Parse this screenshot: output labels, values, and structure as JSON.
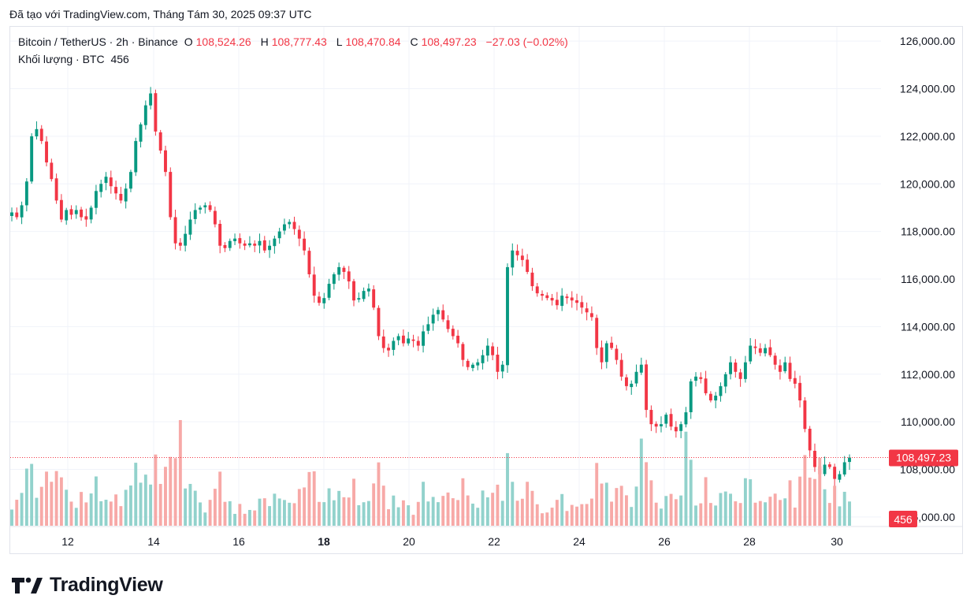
{
  "caption": "Đã tạo với TradingView.com, Tháng Tám 30, 2025 09:37 UTC",
  "legend": {
    "symbol": "Bitcoin / TetherUS · 2h · Binance",
    "open_label": "O",
    "open": "108,524.26",
    "high_label": "H",
    "high": "108,777.43",
    "low_label": "L",
    "low": "108,470.84",
    "close_label": "C",
    "close": "108,497.23",
    "change": "−27.03 (−0.02%)",
    "volume_label": "Khối lượng · BTC",
    "volume": "456"
  },
  "price_tag": "108,497.23",
  "volume_tag": "456",
  "brand": "TradingView",
  "colors": {
    "up": "#089981",
    "down": "#f23645",
    "vol_up": "#92d2cc",
    "vol_down": "#f7a9a7",
    "grid": "#f0f3fa",
    "text": "#131722"
  },
  "chart_data": {
    "type": "candlestick",
    "y_ticks": [
      "126,000.00",
      "124,000.00",
      "122,000.00",
      "120,000.00",
      "118,000.00",
      "116,000.00",
      "114,000.00",
      "112,000.00",
      "110,000.00",
      "108,000.00",
      "106,000.00"
    ],
    "y_tick_values": [
      126000,
      124000,
      122000,
      120000,
      118000,
      116000,
      114000,
      112000,
      110000,
      108000,
      106000
    ],
    "x_ticks": [
      "12",
      "14",
      "16",
      "18",
      "20",
      "22",
      "24",
      "26",
      "28",
      "30"
    ],
    "x_tick_bold": [
      "18"
    ],
    "y_range": [
      105600,
      126600
    ],
    "last_price": 108497.23,
    "approx_closes": [
      118800,
      118600,
      119100,
      120100,
      122000,
      122300,
      121800,
      120900,
      120200,
      119300,
      118500,
      118900,
      118700,
      118900,
      118600,
      118500,
      119000,
      119700,
      120000,
      120300,
      119900,
      119600,
      119300,
      119800,
      120500,
      121800,
      122500,
      123300,
      123800,
      122200,
      121400,
      120500,
      118600,
      117500,
      117400,
      117900,
      118500,
      118900,
      119000,
      119100,
      118900,
      118300,
      117400,
      117300,
      117600,
      117700,
      117500,
      117400,
      117500,
      117400,
      117600,
      117200,
      117400,
      117700,
      118000,
      118300,
      118400,
      118100,
      117700,
      117200,
      116200,
      115300,
      115000,
      115200,
      115800,
      116200,
      116500,
      116300,
      115900,
      115100,
      115200,
      115500,
      115600,
      114800,
      113600,
      113100,
      113000,
      113400,
      113600,
      113300,
      113500,
      113400,
      113200,
      113800,
      114100,
      114500,
      114700,
      114300,
      113900,
      113600,
      113300,
      112600,
      112300,
      112400,
      112500,
      112800,
      113200,
      112800,
      112100,
      112400,
      116500,
      117200,
      117000,
      116800,
      116300,
      115700,
      115400,
      115300,
      115200,
      115100,
      114900,
      115300,
      115200,
      115100,
      115000,
      114800,
      114600,
      114400,
      113100,
      112500,
      113300,
      113100,
      112600,
      111900,
      111500,
      111600,
      112100,
      112400,
      110500,
      109900,
      109800,
      109900,
      110300,
      109800,
      109600,
      109900,
      110400,
      111700,
      111900,
      111800,
      111200,
      110900,
      111100,
      111500,
      112000,
      112500,
      112100,
      111800,
      112500,
      113200,
      113100,
      112900,
      113100,
      112800,
      112400,
      112100,
      112500,
      111800,
      111600,
      110900,
      109700,
      108800,
      108100,
      107800,
      108200,
      108100,
      107600,
      107800,
      108300,
      108497
    ]
  }
}
